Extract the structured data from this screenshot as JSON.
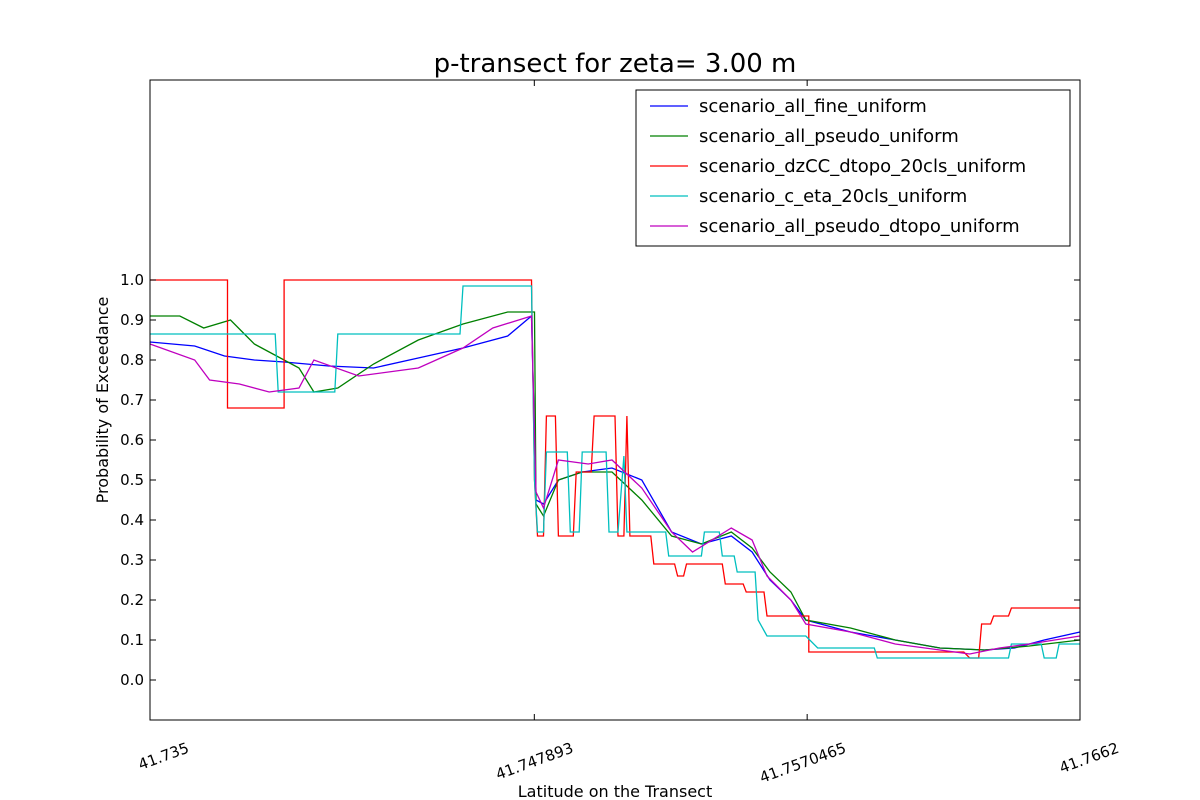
{
  "chart_data": {
    "type": "line",
    "title": "p-transect for zeta= 3.00 m",
    "xlabel": "Latitude on the Transect",
    "ylabel": "Probability of Exceedance",
    "xlim": [
      41.735,
      41.7662
    ],
    "ylim": [
      -0.1,
      1.5
    ],
    "x_ticks": [
      "41.735",
      "41.747893",
      "41.7570465",
      "41.7662"
    ],
    "x_tick_values": [
      41.735,
      41.747893,
      41.7570465,
      41.7662
    ],
    "y_ticks": [
      "0.0",
      "0.1",
      "0.2",
      "0.3",
      "0.4",
      "0.5",
      "0.6",
      "0.7",
      "0.8",
      "0.9",
      "1.0"
    ],
    "legend_position": "top-right",
    "grid": false,
    "series": [
      {
        "name": "scenario_all_fine_uniform",
        "color": "#0000ff",
        "points": [
          [
            41.735,
            0.845
          ],
          [
            41.7365,
            0.835
          ],
          [
            41.7375,
            0.81
          ],
          [
            41.7385,
            0.8
          ],
          [
            41.7395,
            0.795
          ],
          [
            41.741,
            0.785
          ],
          [
            41.7425,
            0.78
          ],
          [
            41.744,
            0.805
          ],
          [
            41.7455,
            0.83
          ],
          [
            41.747,
            0.86
          ],
          [
            41.7478,
            0.91
          ],
          [
            41.74795,
            0.45
          ],
          [
            41.7482,
            0.44
          ],
          [
            41.7487,
            0.5
          ],
          [
            41.7495,
            0.52
          ],
          [
            41.7505,
            0.53
          ],
          [
            41.7515,
            0.5
          ],
          [
            41.7525,
            0.37
          ],
          [
            41.7535,
            0.34
          ],
          [
            41.7545,
            0.36
          ],
          [
            41.7552,
            0.32
          ],
          [
            41.7558,
            0.25
          ],
          [
            41.7565,
            0.2
          ],
          [
            41.757,
            0.15
          ],
          [
            41.7585,
            0.12
          ],
          [
            41.76,
            0.1
          ],
          [
            41.7615,
            0.08
          ],
          [
            41.763,
            0.075
          ],
          [
            41.764,
            0.08
          ],
          [
            41.765,
            0.1
          ],
          [
            41.7662,
            0.12
          ]
        ]
      },
      {
        "name": "scenario_all_pseudo_uniform",
        "color": "#008000",
        "points": [
          [
            41.735,
            0.91
          ],
          [
            41.736,
            0.91
          ],
          [
            41.7368,
            0.88
          ],
          [
            41.7377,
            0.9
          ],
          [
            41.7385,
            0.84
          ],
          [
            41.74,
            0.78
          ],
          [
            41.7405,
            0.72
          ],
          [
            41.7413,
            0.73
          ],
          [
            41.7425,
            0.79
          ],
          [
            41.744,
            0.85
          ],
          [
            41.7455,
            0.89
          ],
          [
            41.747,
            0.92
          ],
          [
            41.7479,
            0.92
          ],
          [
            41.74795,
            0.44
          ],
          [
            41.7482,
            0.41
          ],
          [
            41.7487,
            0.5
          ],
          [
            41.7495,
            0.52
          ],
          [
            41.7505,
            0.52
          ],
          [
            41.7515,
            0.45
          ],
          [
            41.7525,
            0.36
          ],
          [
            41.7535,
            0.34
          ],
          [
            41.7545,
            0.37
          ],
          [
            41.7552,
            0.33
          ],
          [
            41.7558,
            0.27
          ],
          [
            41.7565,
            0.22
          ],
          [
            41.757,
            0.15
          ],
          [
            41.7585,
            0.13
          ],
          [
            41.76,
            0.1
          ],
          [
            41.7615,
            0.08
          ],
          [
            41.763,
            0.075
          ],
          [
            41.7645,
            0.085
          ],
          [
            41.7662,
            0.1
          ]
        ]
      },
      {
        "name": "scenario_dzCC_dtopo_20cls_uniform",
        "color": "#ff0000",
        "points": [
          [
            41.735,
            1.0
          ],
          [
            41.7376,
            1.0
          ],
          [
            41.7376,
            0.68
          ],
          [
            41.7395,
            0.68
          ],
          [
            41.7395,
            1.0
          ],
          [
            41.7478,
            1.0
          ],
          [
            41.7479,
            0.5
          ],
          [
            41.748,
            0.36
          ],
          [
            41.7482,
            0.36
          ],
          [
            41.7483,
            0.66
          ],
          [
            41.7486,
            0.66
          ],
          [
            41.7487,
            0.36
          ],
          [
            41.7492,
            0.36
          ],
          [
            41.7493,
            0.52
          ],
          [
            41.7498,
            0.52
          ],
          [
            41.7499,
            0.66
          ],
          [
            41.7506,
            0.66
          ],
          [
            41.7507,
            0.36
          ],
          [
            41.7509,
            0.36
          ],
          [
            41.751,
            0.66
          ],
          [
            41.7511,
            0.36
          ],
          [
            41.7518,
            0.36
          ],
          [
            41.7519,
            0.29
          ],
          [
            41.7526,
            0.29
          ],
          [
            41.7527,
            0.26
          ],
          [
            41.7529,
            0.26
          ],
          [
            41.753,
            0.29
          ],
          [
            41.7542,
            0.29
          ],
          [
            41.7543,
            0.24
          ],
          [
            41.7549,
            0.24
          ],
          [
            41.755,
            0.22
          ],
          [
            41.7556,
            0.22
          ],
          [
            41.7557,
            0.16
          ],
          [
            41.7571,
            0.16
          ],
          [
            41.7571,
            0.07
          ],
          [
            41.7623,
            0.07
          ],
          [
            41.7625,
            0.055
          ],
          [
            41.7628,
            0.055
          ],
          [
            41.7629,
            0.14
          ],
          [
            41.7632,
            0.14
          ],
          [
            41.7633,
            0.16
          ],
          [
            41.7638,
            0.16
          ],
          [
            41.7639,
            0.18
          ],
          [
            41.7662,
            0.18
          ]
        ]
      },
      {
        "name": "scenario_c_eta_20cls_uniform",
        "color": "#00bfbf",
        "points": [
          [
            41.735,
            0.865
          ],
          [
            41.7392,
            0.865
          ],
          [
            41.7393,
            0.72
          ],
          [
            41.7412,
            0.72
          ],
          [
            41.7413,
            0.865
          ],
          [
            41.7454,
            0.865
          ],
          [
            41.7455,
            0.985
          ],
          [
            41.7478,
            0.985
          ],
          [
            41.7479,
            0.5
          ],
          [
            41.748,
            0.37
          ],
          [
            41.7482,
            0.37
          ],
          [
            41.7483,
            0.57
          ],
          [
            41.749,
            0.57
          ],
          [
            41.7491,
            0.37
          ],
          [
            41.7494,
            0.37
          ],
          [
            41.7495,
            0.57
          ],
          [
            41.7503,
            0.57
          ],
          [
            41.7504,
            0.37
          ],
          [
            41.7507,
            0.37
          ],
          [
            41.7509,
            0.56
          ],
          [
            41.751,
            0.37
          ],
          [
            41.7523,
            0.37
          ],
          [
            41.7524,
            0.31
          ],
          [
            41.7535,
            0.31
          ],
          [
            41.7536,
            0.37
          ],
          [
            41.7541,
            0.37
          ],
          [
            41.7542,
            0.31
          ],
          [
            41.7546,
            0.31
          ],
          [
            41.7547,
            0.27
          ],
          [
            41.7553,
            0.27
          ],
          [
            41.7554,
            0.15
          ],
          [
            41.7557,
            0.11
          ],
          [
            41.757,
            0.11
          ],
          [
            41.7574,
            0.08
          ],
          [
            41.7593,
            0.08
          ],
          [
            41.7594,
            0.055
          ],
          [
            41.7638,
            0.055
          ],
          [
            41.7639,
            0.09
          ],
          [
            41.7649,
            0.09
          ],
          [
            41.765,
            0.055
          ],
          [
            41.7654,
            0.055
          ],
          [
            41.7655,
            0.09
          ],
          [
            41.7662,
            0.09
          ]
        ]
      },
      {
        "name": "scenario_all_pseudo_dtopo_uniform",
        "color": "#bf00bf",
        "points": [
          [
            41.735,
            0.84
          ],
          [
            41.7365,
            0.8
          ],
          [
            41.737,
            0.75
          ],
          [
            41.738,
            0.74
          ],
          [
            41.739,
            0.72
          ],
          [
            41.74,
            0.73
          ],
          [
            41.7405,
            0.8
          ],
          [
            41.742,
            0.76
          ],
          [
            41.744,
            0.78
          ],
          [
            41.7455,
            0.83
          ],
          [
            41.7465,
            0.88
          ],
          [
            41.7478,
            0.91
          ],
          [
            41.74795,
            0.47
          ],
          [
            41.7482,
            0.43
          ],
          [
            41.7487,
            0.55
          ],
          [
            41.7497,
            0.54
          ],
          [
            41.7505,
            0.55
          ],
          [
            41.7515,
            0.48
          ],
          [
            41.7525,
            0.37
          ],
          [
            41.7532,
            0.32
          ],
          [
            41.7545,
            0.38
          ],
          [
            41.7552,
            0.35
          ],
          [
            41.7557,
            0.26
          ],
          [
            41.7565,
            0.2
          ],
          [
            41.757,
            0.14
          ],
          [
            41.7585,
            0.12
          ],
          [
            41.76,
            0.09
          ],
          [
            41.7615,
            0.075
          ],
          [
            41.7625,
            0.065
          ],
          [
            41.7635,
            0.08
          ],
          [
            41.7645,
            0.09
          ],
          [
            41.7662,
            0.11
          ]
        ]
      }
    ]
  }
}
